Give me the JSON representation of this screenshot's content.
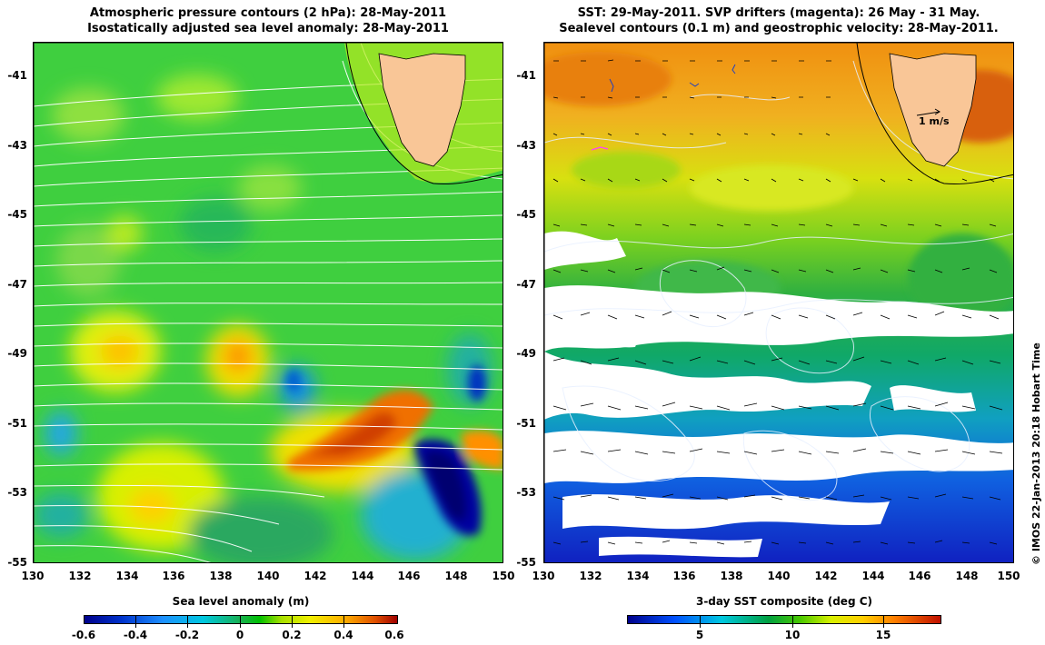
{
  "left_panel": {
    "title_line1": "Atmospheric pressure contours (2 hPa): 28-May-2011",
    "title_line2": "Isostatically adjusted sea level anomaly: 28-May-2011",
    "colorbar_label": "Sea level anomaly (m)",
    "colorbar_ticks": [
      "-0.6",
      "-0.4",
      "-0.2",
      "0",
      "0.2",
      "0.4",
      "0.6"
    ],
    "y_ticks": [
      "-41",
      "-43",
      "-45",
      "-47",
      "-49",
      "-51",
      "-53",
      "-55"
    ],
    "x_ticks": [
      "130",
      "132",
      "134",
      "136",
      "138",
      "140",
      "142",
      "144",
      "146",
      "148",
      "150"
    ]
  },
  "right_panel": {
    "title_line1": "SST: 29-May-2011. SVP drifters (magenta): 26 May - 31 May.",
    "title_line2": "Sealevel contours (0.1 m) and geostrophic velocity: 28-May-2011.",
    "colorbar_label": "3-day SST composite (deg C)",
    "colorbar_ticks": [
      "5",
      "10",
      "15"
    ],
    "velocity_scale_label": "1 m/s",
    "y_ticks": [
      "-41",
      "-43",
      "-45",
      "-47",
      "-49",
      "-51",
      "-53",
      "-55"
    ],
    "x_ticks": [
      "130",
      "132",
      "134",
      "136",
      "138",
      "140",
      "142",
      "144",
      "146",
      "148",
      "150"
    ]
  },
  "credit": "© IMOS 22-Jan-2013 20:18 Hobart Time",
  "colors": {
    "land": "#f9c697",
    "sla_background": "#3fcf3f",
    "sst_warm": "#f0a020",
    "cloud": "#ffffff",
    "contour": "#ffffff"
  }
}
